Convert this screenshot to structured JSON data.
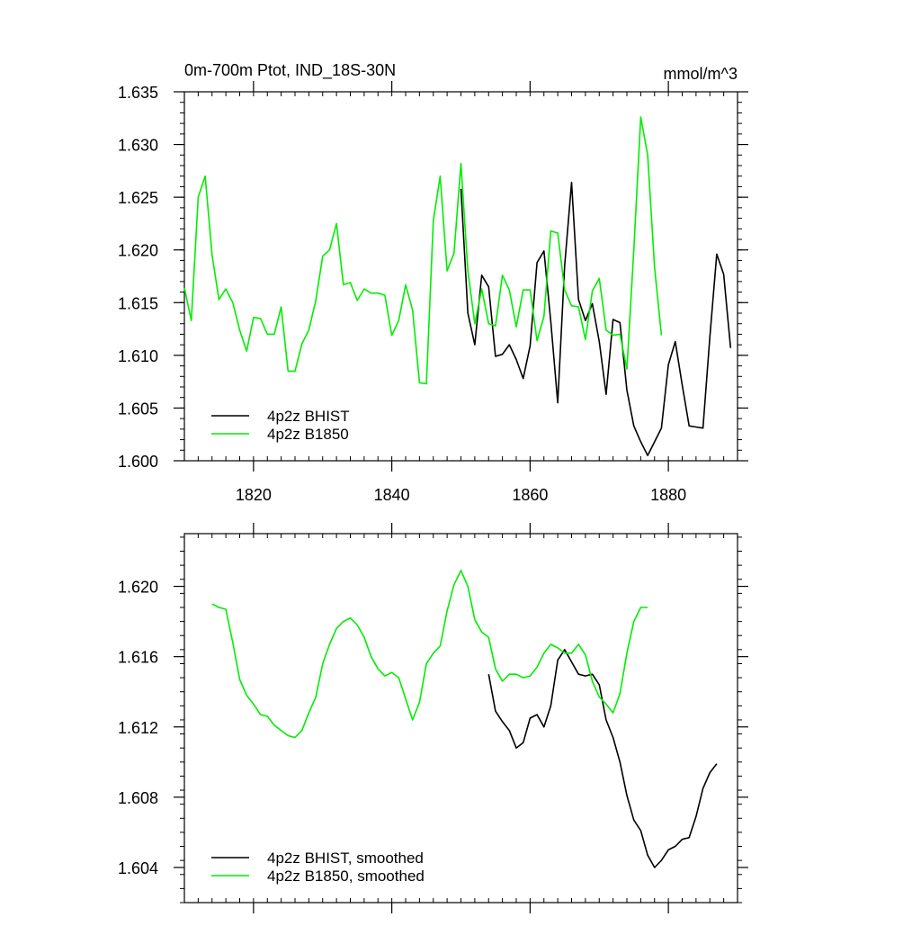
{
  "chart_data": [
    {
      "type": "line",
      "title": "0m-700m Ptot, IND_18S-30N",
      "units": "mmol/m^3",
      "xlim": [
        1810,
        1890
      ],
      "ylim": [
        1.6,
        1.635
      ],
      "xticks": [
        1820,
        1840,
        1860,
        1880
      ],
      "yticks": [
        1.6,
        1.605,
        1.61,
        1.615,
        1.62,
        1.625,
        1.63,
        1.635
      ],
      "ytick_labels": [
        "1.600",
        "1.605",
        "1.610",
        "1.615",
        "1.620",
        "1.625",
        "1.630",
        "1.635"
      ],
      "show_xtick_labels": true,
      "legend_placement": "bottom-left",
      "series": [
        {
          "name": "4p2z BHIST",
          "color": "#000000",
          "x": [
            1850,
            1851,
            1852,
            1853,
            1854,
            1855,
            1856,
            1857,
            1858,
            1859,
            1860,
            1861,
            1862,
            1863,
            1864,
            1865,
            1866,
            1867,
            1868,
            1869,
            1870,
            1871,
            1872,
            1873,
            1874,
            1875,
            1876,
            1877,
            1878,
            1879,
            1880,
            1881,
            1882,
            1883,
            1884,
            1885,
            1886,
            1887,
            1888,
            1889
          ],
          "y": [
            1.6258,
            1.614,
            1.611,
            1.6176,
            1.6165,
            1.6099,
            1.6101,
            1.611,
            1.6096,
            1.6078,
            1.6109,
            1.6188,
            1.6199,
            1.6132,
            1.6055,
            1.6185,
            1.6264,
            1.6153,
            1.6133,
            1.6149,
            1.6113,
            1.6063,
            1.6134,
            1.6131,
            1.6067,
            1.6033,
            1.6018,
            1.6005,
            1.6018,
            1.6031,
            1.6091,
            1.6113,
            1.6072,
            1.6033,
            1.6032,
            1.6031,
            1.6118,
            1.6196,
            1.6177,
            1.6107
          ]
        },
        {
          "name": "4p2z B1850",
          "color": "#00ee00",
          "x": [
            1810,
            1811,
            1812,
            1813,
            1814,
            1815,
            1816,
            1817,
            1818,
            1819,
            1820,
            1821,
            1822,
            1823,
            1824,
            1825,
            1826,
            1827,
            1828,
            1829,
            1830,
            1831,
            1832,
            1833,
            1834,
            1835,
            1836,
            1837,
            1838,
            1839,
            1840,
            1841,
            1842,
            1843,
            1844,
            1845,
            1846,
            1847,
            1848,
            1849,
            1850,
            1851,
            1852,
            1853,
            1854,
            1855,
            1856,
            1857,
            1858,
            1859,
            1860,
            1861,
            1862,
            1863,
            1864,
            1865,
            1866,
            1867,
            1868,
            1869,
            1870,
            1871,
            1872,
            1873,
            1874,
            1875,
            1876,
            1877,
            1878,
            1879
          ],
          "y": [
            1.6164,
            1.6133,
            1.625,
            1.627,
            1.6195,
            1.6153,
            1.6163,
            1.615,
            1.6124,
            1.6104,
            1.6136,
            1.6135,
            1.612,
            1.612,
            1.6146,
            1.6085,
            1.6085,
            1.6111,
            1.6124,
            1.6152,
            1.6194,
            1.62,
            1.6225,
            1.6167,
            1.6169,
            1.6152,
            1.6163,
            1.6159,
            1.6159,
            1.6157,
            1.6119,
            1.6133,
            1.6167,
            1.6143,
            1.6074,
            1.6073,
            1.6228,
            1.627,
            1.618,
            1.6197,
            1.6282,
            1.618,
            1.613,
            1.6163,
            1.613,
            1.6128,
            1.6176,
            1.6162,
            1.6127,
            1.6162,
            1.6162,
            1.6114,
            1.6137,
            1.6218,
            1.6216,
            1.6162,
            1.6147,
            1.6146,
            1.6115,
            1.6161,
            1.6173,
            1.6124,
            1.6119,
            1.612,
            1.6087,
            1.62,
            1.6326,
            1.629,
            1.6183,
            1.6119
          ]
        }
      ]
    },
    {
      "type": "line",
      "xlim": [
        1810,
        1890
      ],
      "ylim": [
        1.602,
        1.623
      ],
      "xticks": [
        1820,
        1840,
        1860,
        1880
      ],
      "yticks": [
        1.604,
        1.608,
        1.612,
        1.616,
        1.62
      ],
      "ytick_labels": [
        "1.604",
        "1.608",
        "1.612",
        "1.616",
        "1.620"
      ],
      "show_xtick_labels": false,
      "legend_placement": "bottom-left",
      "series": [
        {
          "name": "4p2z BHIST, smoothed",
          "color": "#000000",
          "x": [
            1854,
            1855,
            1856,
            1857,
            1858,
            1859,
            1860,
            1861,
            1862,
            1863,
            1864,
            1865,
            1866,
            1867,
            1868,
            1869,
            1870,
            1871,
            1872,
            1873,
            1874,
            1875,
            1876,
            1877,
            1878,
            1879,
            1880,
            1881,
            1882,
            1883,
            1884,
            1885,
            1886,
            1887
          ],
          "y": [
            1.615,
            1.6129,
            1.6123,
            1.6118,
            1.6108,
            1.6111,
            1.6125,
            1.6127,
            1.612,
            1.6132,
            1.6158,
            1.6164,
            1.6157,
            1.615,
            1.6149,
            1.615,
            1.6144,
            1.6124,
            1.6114,
            1.61,
            1.6081,
            1.6067,
            1.6061,
            1.6047,
            1.604,
            1.6044,
            1.605,
            1.6052,
            1.6056,
            1.6057,
            1.6069,
            1.6085,
            1.6094,
            1.6099
          ]
        },
        {
          "name": "4p2z B1850, smoothed",
          "color": "#00ee00",
          "x": [
            1814,
            1815,
            1816,
            1817,
            1818,
            1819,
            1820,
            1821,
            1822,
            1823,
            1824,
            1825,
            1826,
            1827,
            1828,
            1829,
            1830,
            1831,
            1832,
            1833,
            1834,
            1835,
            1836,
            1837,
            1838,
            1839,
            1840,
            1841,
            1842,
            1843,
            1844,
            1845,
            1846,
            1847,
            1848,
            1849,
            1850,
            1851,
            1852,
            1853,
            1854,
            1855,
            1856,
            1857,
            1858,
            1859,
            1860,
            1861,
            1862,
            1863,
            1864,
            1865,
            1866,
            1867,
            1868,
            1869,
            1870,
            1871,
            1872,
            1873,
            1874,
            1875,
            1876,
            1877
          ],
          "y": [
            1.619,
            1.6188,
            1.6187,
            1.6168,
            1.6147,
            1.6138,
            1.6133,
            1.6127,
            1.6126,
            1.6121,
            1.6118,
            1.6115,
            1.6114,
            1.6118,
            1.6128,
            1.6137,
            1.6156,
            1.6167,
            1.6176,
            1.618,
            1.6182,
            1.6178,
            1.6171,
            1.616,
            1.6153,
            1.6149,
            1.6151,
            1.6148,
            1.6136,
            1.6124,
            1.6134,
            1.6156,
            1.6162,
            1.6166,
            1.6186,
            1.6201,
            1.6209,
            1.62,
            1.6181,
            1.6174,
            1.6171,
            1.6153,
            1.6146,
            1.615,
            1.615,
            1.6148,
            1.6149,
            1.6154,
            1.6162,
            1.6167,
            1.6165,
            1.6162,
            1.6162,
            1.6167,
            1.6161,
            1.6146,
            1.6137,
            1.6133,
            1.6128,
            1.6139,
            1.6162,
            1.618,
            1.6188,
            1.6188
          ]
        }
      ]
    }
  ]
}
